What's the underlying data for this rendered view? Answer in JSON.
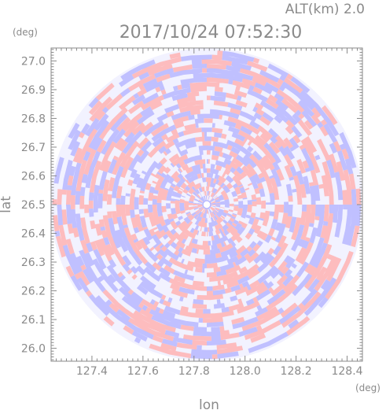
{
  "chart_data": {
    "type": "heatmap",
    "title": "2017/10/24 07:52:30",
    "subtitle": "ALT(km) 2.0",
    "xlabel": "lon",
    "ylabel": "lat",
    "xunit": "(deg)",
    "yunit": "(deg)",
    "xlim": [
      127.24,
      128.46
    ],
    "ylim": [
      25.955,
      27.045
    ],
    "xticks": [
      "127.4",
      "127.6",
      "127.8",
      "128.0",
      "128.2",
      "128.4"
    ],
    "yticks": [
      "26.0",
      "26.1",
      "26.2",
      "26.3",
      "26.4",
      "26.5",
      "26.6",
      "26.7",
      "26.8",
      "26.9",
      "27.0"
    ],
    "center": {
      "lon": 127.85,
      "lat": 26.5
    },
    "radius_deg": {
      "lon": 0.605,
      "lat": 0.545
    },
    "colors": {
      "positive": "#ffb3b3",
      "negative": "#b7b7ff",
      "neutral": "#eeeeff",
      "axis": "#8a8a8a"
    }
  }
}
